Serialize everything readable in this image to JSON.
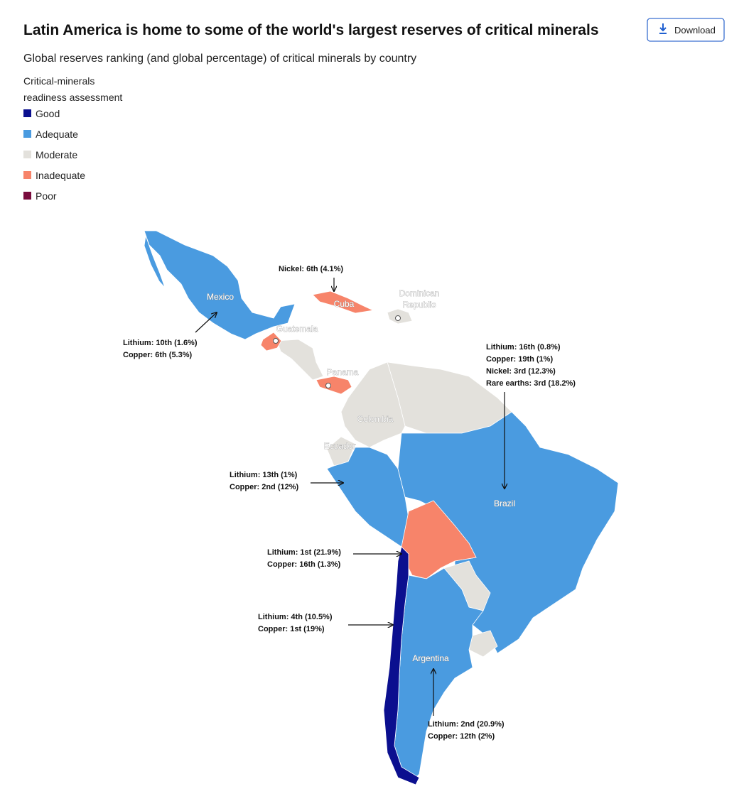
{
  "header": {
    "title": "Latin America is home to some of the world's largest reserves of critical minerals",
    "subtitle": "Global reserves ranking (and global percentage) of critical minerals by country",
    "download": "Download"
  },
  "legend": {
    "title_lines": [
      "Critical-minerals",
      "readiness assessment"
    ],
    "items": [
      {
        "label": "Good",
        "color": "#0b0f8f"
      },
      {
        "label": "Adequate",
        "color": "#4a9be0"
      },
      {
        "label": "Moderate",
        "color": "#e3e1dc"
      },
      {
        "label": "Inadequate",
        "color": "#f7846a"
      },
      {
        "label": "Poor",
        "color": "#7a0c3d"
      }
    ]
  },
  "country_labels": [
    {
      "lines": [
        "Mexico"
      ]
    },
    {
      "lines": [
        "Cuba"
      ]
    },
    {
      "lines": [
        "Dominican",
        "Republic"
      ]
    },
    {
      "lines": [
        "Guatemala"
      ]
    },
    {
      "lines": [
        "Panama"
      ]
    },
    {
      "lines": [
        "Colombia"
      ]
    },
    {
      "lines": [
        "Ecuador"
      ]
    },
    {
      "lines": [
        "Brazil"
      ]
    },
    {
      "lines": [
        "Argentina"
      ]
    }
  ],
  "annotations": [
    {
      "lines": [
        "Nickel: 6th (4.1%)"
      ]
    },
    {
      "lines": [
        "Lithium: 10th (1.6%)",
        "Copper: 6th (5.3%)"
      ]
    },
    {
      "lines": [
        "Lithium: 16th (0.8%)",
        "Copper: 19th (1%)",
        "Nickel: 3rd (12.3%)",
        "Rare earths: 3rd (18.2%)"
      ]
    },
    {
      "lines": [
        "Lithium: 13th (1%)",
        "Copper: 2nd (12%)"
      ]
    },
    {
      "lines": [
        "Lithium: 1st (21.9%)",
        "Copper: 16th (1.3%)"
      ]
    },
    {
      "lines": [
        "Lithium: 4th (10.5%)",
        "Copper: 1st (19%)"
      ]
    },
    {
      "lines": [
        "Lithium: 2nd (20.9%)",
        "Copper: 12th (2%)"
      ]
    }
  ]
}
